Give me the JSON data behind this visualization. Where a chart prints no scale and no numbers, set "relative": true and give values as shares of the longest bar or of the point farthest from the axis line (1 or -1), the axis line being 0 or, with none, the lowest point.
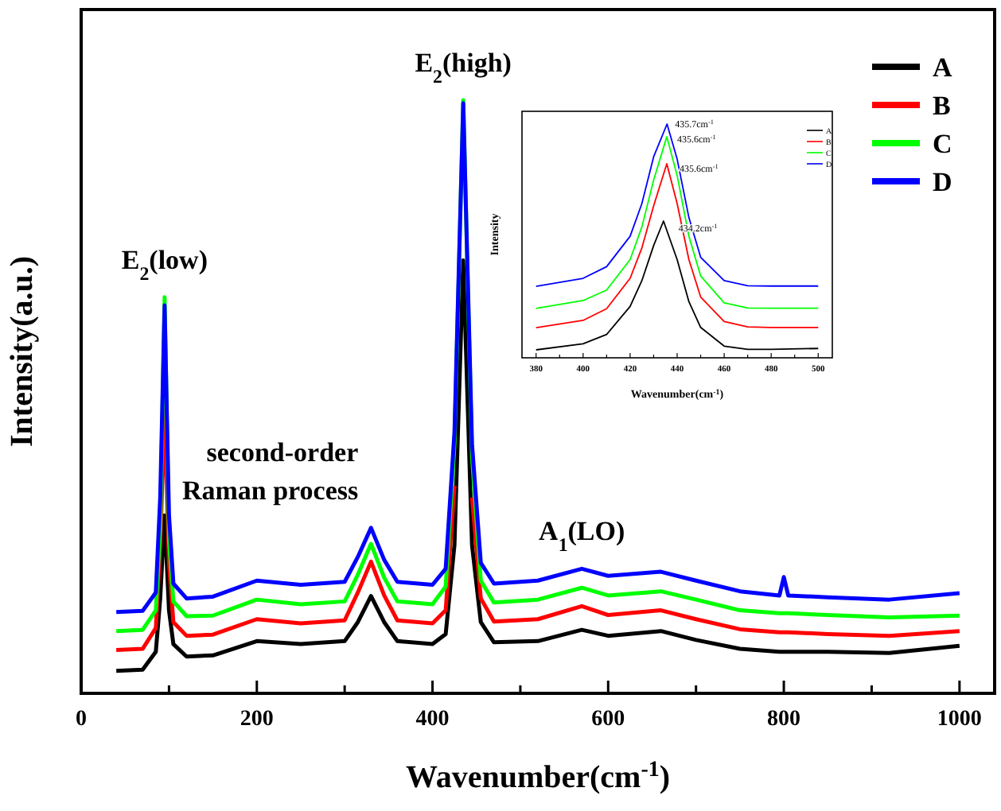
{
  "chart_data": [
    {
      "type": "line",
      "relative": true,
      "xlabel": "Wavenumber(cm$^{-1}$)",
      "ylabel": "Intensity(a.u.)",
      "xlim": [
        0,
        1040
      ],
      "xticks": [
        0,
        {
          "value": 100,
          "label": null
        },
        200,
        {
          "value": 300,
          "label": null
        },
        400,
        {
          "value": 500,
          "label": null
        },
        600,
        {
          "value": 700,
          "label": null
        },
        800,
        {
          "value": 900,
          "label": null
        },
        1000
      ],
      "x": [
        40,
        70,
        85,
        90,
        95,
        100,
        105,
        120,
        150,
        200,
        250,
        300,
        315,
        330,
        345,
        360,
        400,
        415,
        425,
        435,
        445,
        455,
        470,
        520,
        570,
        600,
        660,
        700,
        750,
        795,
        800,
        805,
        850,
        920,
        1000
      ],
      "series": [
        {
          "name": "A",
          "color": "#000000",
          "values": [
            0.038,
            0.04,
            0.07,
            0.16,
            0.3,
            0.14,
            0.083,
            0.062,
            0.064,
            0.088,
            0.083,
            0.088,
            0.12,
            0.164,
            0.12,
            0.088,
            0.083,
            0.1,
            0.25,
            0.73,
            0.25,
            0.12,
            0.086,
            0.088,
            0.107,
            0.097,
            0.105,
            0.09,
            0.075,
            0.07,
            0.07,
            0.07,
            0.07,
            0.068,
            0.08
          ]
        },
        {
          "name": "B",
          "color": "#ff0000",
          "values": [
            0.073,
            0.075,
            0.11,
            0.25,
            0.48,
            0.22,
            0.12,
            0.097,
            0.099,
            0.125,
            0.118,
            0.123,
            0.17,
            0.222,
            0.165,
            0.123,
            0.118,
            0.14,
            0.35,
            null,
            0.33,
            0.16,
            0.121,
            0.125,
            0.147,
            0.132,
            0.14,
            0.125,
            0.108,
            0.103,
            0.103,
            0.103,
            0.1,
            0.097,
            0.105
          ]
        },
        {
          "name": "C",
          "color": "#00ff00",
          "values": [
            0.105,
            0.107,
            0.14,
            0.28,
            0.668,
            0.26,
            0.155,
            0.13,
            0.131,
            0.158,
            0.15,
            0.155,
            0.2,
            0.252,
            0.195,
            0.155,
            0.15,
            0.18,
            0.42,
            1.0,
            0.4,
            0.19,
            0.153,
            0.158,
            0.178,
            0.165,
            0.172,
            0.158,
            0.14,
            0.135,
            0.135,
            0.135,
            0.132,
            0.128,
            0.131
          ]
        },
        {
          "name": "D",
          "color": "#0000ff",
          "values": [
            0.137,
            0.139,
            0.17,
            0.33,
            0.654,
            0.3,
            0.185,
            0.16,
            0.163,
            0.19,
            0.183,
            0.188,
            0.23,
            0.279,
            0.225,
            0.188,
            0.183,
            0.21,
            0.44,
            0.995,
            0.42,
            0.22,
            0.185,
            0.19,
            0.21,
            0.198,
            0.205,
            0.19,
            0.172,
            0.165,
            0.196,
            0.165,
            0.162,
            0.158,
            0.169
          ]
        }
      ],
      "legend": "top right",
      "annotations": [
        {
          "text": "E$_{2}$(low)",
          "x": 95,
          "y": 0.668
        },
        {
          "text": "E$_{2}$(high)",
          "x": 435,
          "y": 1.0
        },
        {
          "text": "second-order\nRaman process",
          "x": 330,
          "y": 0.279
        },
        {
          "text": "A$_{1}$(LO)",
          "x": 570,
          "y": 0.21
        }
      ]
    },
    {
      "type": "line",
      "relative": true,
      "xlabel": "Wavenumber(cm$^{-1}$)",
      "ylabel": "Intensity",
      "xlim": [
        374,
        506
      ],
      "xticks": [
        380,
        {
          "value": 390,
          "label": null
        },
        400,
        {
          "value": 410,
          "label": null
        },
        420,
        {
          "value": 430,
          "label": null
        },
        440,
        {
          "value": 450,
          "label": null
        },
        460,
        {
          "value": 470,
          "label": null
        },
        480,
        {
          "value": 490,
          "label": null
        },
        500
      ],
      "series": [
        {
          "name": "A",
          "color": "#000000",
          "x": [
            380,
            400,
            410,
            420,
            425,
            430,
            434.2,
            440,
            445,
            450,
            460,
            470,
            480,
            500
          ],
          "values": [
            0.034,
            0.06,
            0.1,
            0.22,
            0.33,
            0.48,
            0.585,
            0.42,
            0.24,
            0.13,
            0.05,
            0.036,
            0.036,
            0.04
          ]
        },
        {
          "name": "B",
          "color": "#ff0000",
          "x": [
            380,
            400,
            410,
            420,
            425,
            430,
            435.6,
            440,
            445,
            450,
            460,
            470,
            480,
            500
          ],
          "values": [
            0.129,
            0.16,
            0.21,
            0.34,
            0.47,
            0.65,
            0.83,
            0.66,
            0.42,
            0.26,
            0.155,
            0.132,
            0.13,
            0.13
          ]
        },
        {
          "name": "C",
          "color": "#00ff00",
          "x": [
            380,
            400,
            410,
            420,
            425,
            430,
            435.6,
            440,
            445,
            450,
            460,
            470,
            480,
            500
          ],
          "values": [
            0.211,
            0.245,
            0.29,
            0.42,
            0.56,
            0.76,
            0.946,
            0.78,
            0.52,
            0.35,
            0.235,
            0.213,
            0.212,
            0.212
          ]
        },
        {
          "name": "D",
          "color": "#0000ff",
          "x": [
            380,
            400,
            410,
            420,
            425,
            430,
            435.7,
            440,
            445,
            450,
            460,
            470,
            480,
            500
          ],
          "values": [
            0.306,
            0.34,
            0.39,
            0.52,
            0.66,
            0.86,
            1.0,
            0.85,
            0.6,
            0.43,
            0.33,
            0.308,
            0.307,
            0.307
          ]
        }
      ],
      "legend": "top right",
      "annotations": [
        {
          "text": "435.7cm$^{-1}$",
          "x": 435.7,
          "y": 1.0
        },
        {
          "text": "435.6cm$^{-1}$",
          "x": 435.6,
          "y": 0.946
        },
        {
          "text": "435.6cm$^{-1}$",
          "x": 435.6,
          "y": 0.83
        },
        {
          "text": "434.2cm$^{-1}$",
          "x": 434.2,
          "y": 0.585
        }
      ]
    }
  ]
}
